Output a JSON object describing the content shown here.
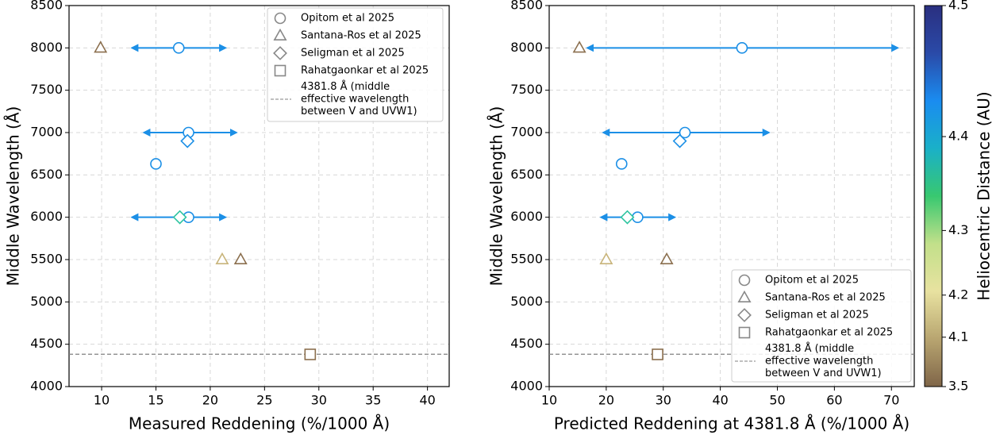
{
  "chart_data": [
    {
      "type": "scatter",
      "x_label": "Measured Reddening (%/1000 Å)",
      "y_label": "Middle Wavelength (Å)",
      "xlim": [
        7,
        42
      ],
      "xticks": [
        10,
        15,
        20,
        25,
        30,
        35,
        40
      ],
      "ylim": [
        4000,
        8500
      ],
      "yticks": [
        4000,
        4500,
        5000,
        5500,
        6000,
        6500,
        7000,
        7500,
        8000,
        8500
      ],
      "grid": true,
      "legend": "upper right",
      "legend_marker_color": "#888888",
      "series": [
        {
          "name": "Opitom et al 2025",
          "marker": "circle",
          "x": [
            17.1,
            18.0,
            15.0,
            18.0
          ],
          "values": [
            8000,
            7000,
            6630,
            6000
          ],
          "x_low": [
            12.8,
            13.9,
            null,
            12.8
          ],
          "x_high": [
            21.4,
            22.4,
            null,
            21.4
          ],
          "colors": [
            "#1b8fe6",
            "#1b8fe6",
            "#1b8fe6",
            "#1b8fe6"
          ]
        },
        {
          "name": "Santana-Ros et al 2025",
          "marker": "triangle",
          "x": [
            9.9,
            21.1,
            22.8
          ],
          "values": [
            8000,
            5500,
            5500
          ],
          "colors": [
            "#8b6f4e",
            "#c8b47a",
            "#8b6f4e"
          ]
        },
        {
          "name": "Seligman et al 2025",
          "marker": "diamond",
          "x": [
            17.9,
            17.2
          ],
          "values": [
            6900,
            6000
          ],
          "colors": [
            "#1b8fe6",
            "#2ec4a0"
          ]
        },
        {
          "name": "Rahatgaonkar et al 2025",
          "marker": "square",
          "x": [
            29.2
          ],
          "values": [
            4380
          ],
          "colors": [
            "#8b6f4e"
          ]
        }
      ],
      "ref_line": {
        "y": 4381.8,
        "color": "#808080",
        "label": "4381.8 Å (middle\neffective wavelength\nbetween V and UVW1)"
      }
    },
    {
      "type": "scatter",
      "x_label": "Predicted Reddening at 4381.8 Å (%/1000 Å)",
      "y_label": "Middle Wavelength (Å)",
      "xlim": [
        10,
        74
      ],
      "xticks": [
        10,
        20,
        30,
        40,
        50,
        60,
        70
      ],
      "ylim": [
        4000,
        8500
      ],
      "yticks": [
        4000,
        4500,
        5000,
        5500,
        6000,
        6500,
        7000,
        7500,
        8000,
        8500
      ],
      "grid": true,
      "legend": "lower right",
      "legend_marker_color": "#888888",
      "series": [
        {
          "name": "Opitom et al 2025",
          "marker": "circle",
          "x": [
            43.8,
            33.8,
            22.7,
            25.5
          ],
          "values": [
            8000,
            7000,
            6630,
            6000
          ],
          "x_low": [
            16.7,
            19.5,
            null,
            19.1
          ],
          "x_high": [
            71.1,
            48.5,
            null,
            32.0
          ],
          "colors": [
            "#1b8fe6",
            "#1b8fe6",
            "#1b8fe6",
            "#1b8fe6"
          ]
        },
        {
          "name": "Santana-Ros et al 2025",
          "marker": "triangle",
          "x": [
            15.3,
            20.0,
            30.6
          ],
          "values": [
            8000,
            5500,
            5500
          ],
          "colors": [
            "#8b6f4e",
            "#c8b47a",
            "#8b6f4e"
          ]
        },
        {
          "name": "Seligman et al 2025",
          "marker": "diamond",
          "x": [
            32.9,
            23.7
          ],
          "values": [
            6900,
            6000
          ],
          "colors": [
            "#1b8fe6",
            "#2ec4a0"
          ]
        },
        {
          "name": "Rahatgaonkar et al 2025",
          "marker": "square",
          "x": [
            29.0
          ],
          "values": [
            4380
          ],
          "colors": [
            "#8b6f4e"
          ]
        }
      ],
      "ref_line": {
        "y": 4381.8,
        "color": "#808080",
        "label": "4381.8 Å (middle\neffective wavelength\nbetween V and UVW1)"
      },
      "colorbar": {
        "label": "Heliocentric Distance (AU)",
        "lim": [
          3.5,
          4.5
        ],
        "ticks": [
          3.5,
          4.1,
          4.2,
          4.3,
          4.4,
          4.5
        ],
        "scale": "power",
        "gamma": 4,
        "colormap": [
          "#7f6548",
          "#b8a570",
          "#e8e2a0",
          "#c2e08a",
          "#38c870",
          "#1ab0c8",
          "#1a8cf0",
          "#2a4aa8",
          "#2a2f80"
        ]
      }
    }
  ]
}
